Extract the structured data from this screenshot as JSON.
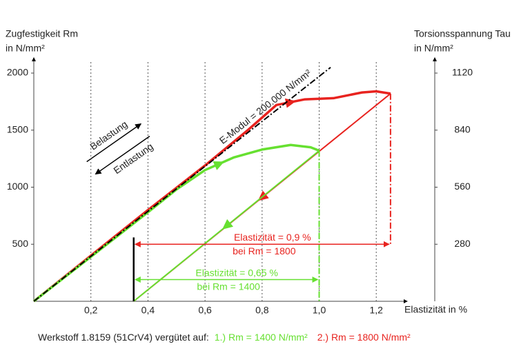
{
  "chart_data": {
    "type": "line",
    "y_label": [
      "Zugfestigkeit Rm",
      "in N/mm²"
    ],
    "y2_label": [
      "Torsionsspannung Tau",
      "in N/mm²"
    ],
    "x_label": "Elastizität in %",
    "xlim": [
      0,
      1.28
    ],
    "ylim": [
      0,
      2100
    ],
    "y2lim": [
      0,
      1176
    ],
    "xticks": [
      {
        "value": 0.2,
        "label": "0,2"
      },
      {
        "value": 0.4,
        "label": "0,4"
      },
      {
        "value": 0.6,
        "label": "0,6"
      },
      {
        "value": 0.8,
        "label": "0,8"
      },
      {
        "value": 1.0,
        "label": "1,0"
      },
      {
        "value": 1.2,
        "label": "1,2"
      }
    ],
    "yticks": [
      500,
      1000,
      1500,
      2000
    ],
    "y2ticks": [
      280,
      560,
      840,
      1120
    ],
    "grid": "x",
    "series": [
      {
        "color": "#e8231f",
        "width": 3.5,
        "style": "solid",
        "x": [
          0,
          0.2,
          0.4,
          0.6,
          0.75,
          0.85,
          0.95,
          1.05,
          1.15,
          1.2,
          1.25
        ],
        "values": [
          0,
          400,
          800,
          1190,
          1500,
          1720,
          1770,
          1780,
          1830,
          1840,
          1820
        ]
      },
      {
        "color": "#e8231f",
        "width": 2,
        "style": "solid",
        "x": [
          1.25,
          0.35
        ],
        "values": [
          1820,
          0
        ]
      },
      {
        "color": "#66e030",
        "width": 3.5,
        "style": "solid",
        "x": [
          0,
          0.2,
          0.4,
          0.5,
          0.6,
          0.7,
          0.8,
          0.9,
          0.97,
          1.0
        ],
        "values": [
          0,
          390,
          780,
          980,
          1150,
          1260,
          1330,
          1370,
          1350,
          1320
        ]
      },
      {
        "color": "#66e030",
        "width": 2,
        "style": "solid",
        "x": [
          1.0,
          0.35
        ],
        "values": [
          1320,
          0
        ]
      },
      {
        "name": "E-Modul = 200.000 N/mm²",
        "color": "#000000",
        "width": 2,
        "style": "dashdot",
        "x": [
          0,
          1.04
        ],
        "values": [
          0,
          2050
        ]
      },
      {
        "color": "#e8231f",
        "width": 2,
        "style": "dashdot",
        "x": [
          1.25,
          1.25
        ],
        "values": [
          1820,
          500
        ]
      },
      {
        "color": "#66e030",
        "width": 2,
        "style": "dashdot",
        "x": [
          1.0,
          1.0
        ],
        "values": [
          1320,
          0
        ]
      },
      {
        "color": "#000000",
        "width": 2.5,
        "style": "solid",
        "x": [
          0.35,
          0.35
        ],
        "values": [
          0,
          560
        ]
      }
    ],
    "spans": [
      {
        "label": [
          "Elastizität = 0,9 %",
          "bei Rm = 1800"
        ],
        "from": 0.35,
        "to": 1.25,
        "y": 500,
        "color": "#e8231f"
      },
      {
        "label": [
          "Elastizität = 0,65 %",
          "bei Rm = 1400"
        ],
        "from": 0.35,
        "to": 1.0,
        "y": 190,
        "color": "#66e030"
      }
    ],
    "annotations": [
      "Belastung",
      "Entlastung"
    ],
    "footer": [
      "Werkstoff 1.8159 (51CrV4) vergütet auf:",
      "1.) Rm = 1400 N/mm²",
      "2.) Rm = 1800 N/mm²"
    ],
    "footer_colors": [
      "#222222",
      "#66e030",
      "#e8231f"
    ]
  }
}
